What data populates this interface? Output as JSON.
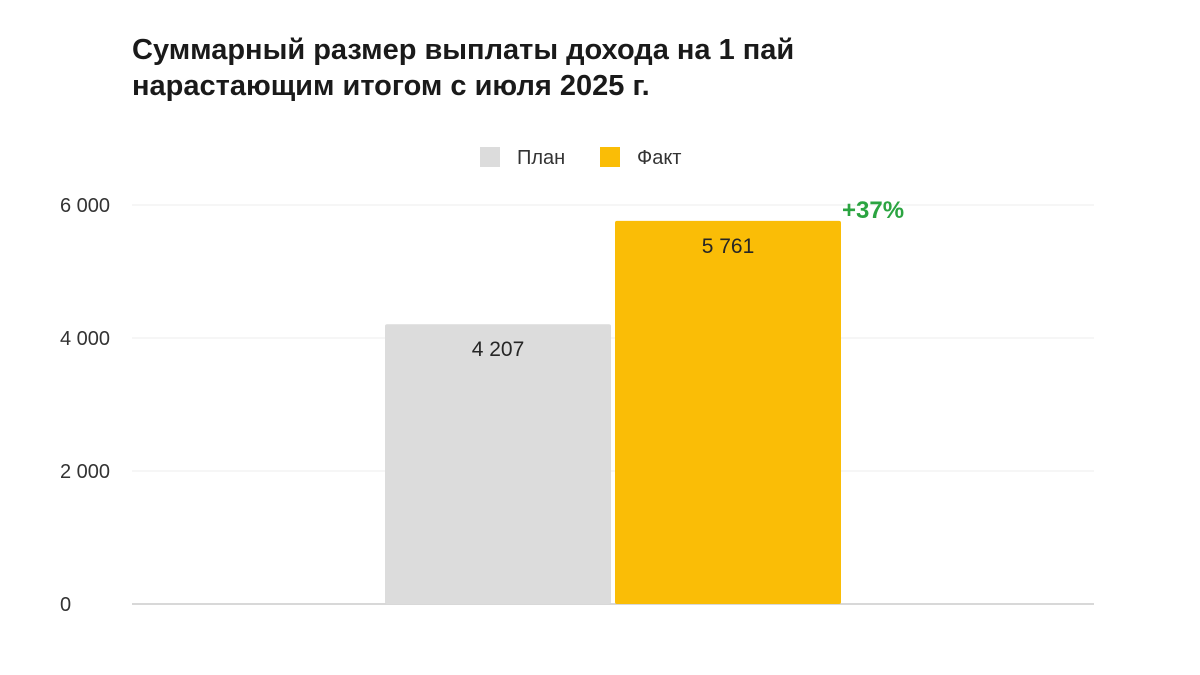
{
  "title": "Суммарный размер выплаты дохода на 1 пай\nнарастающим итогом с июля 2025 г.",
  "colors": {
    "plan": "#dcdcdc",
    "fact": "#fabd06",
    "growth": "#2ba441",
    "grid": "#eeeeee",
    "axis": "#cccccc"
  },
  "chart_data": {
    "type": "bar",
    "title": "Суммарный размер выплаты дохода на 1 пай нарастающим итогом с июля 2025 г.",
    "xlabel": "",
    "ylabel": "",
    "ylim": [
      0,
      6000
    ],
    "yticks": [
      0,
      2000,
      4000,
      6000
    ],
    "ytick_labels": [
      "0",
      "2 000",
      "4 000",
      "6 000"
    ],
    "grid": true,
    "legend_position": "top-center",
    "series": [
      {
        "name": "План",
        "value": 4207,
        "label": "4 207",
        "color": "#dcdcdc"
      },
      {
        "name": "Факт",
        "value": 5761,
        "label": "5 761",
        "color": "#fabd06"
      }
    ],
    "annotations": [
      {
        "text": "+37%",
        "target": "Факт",
        "color": "#2ba441"
      }
    ]
  }
}
